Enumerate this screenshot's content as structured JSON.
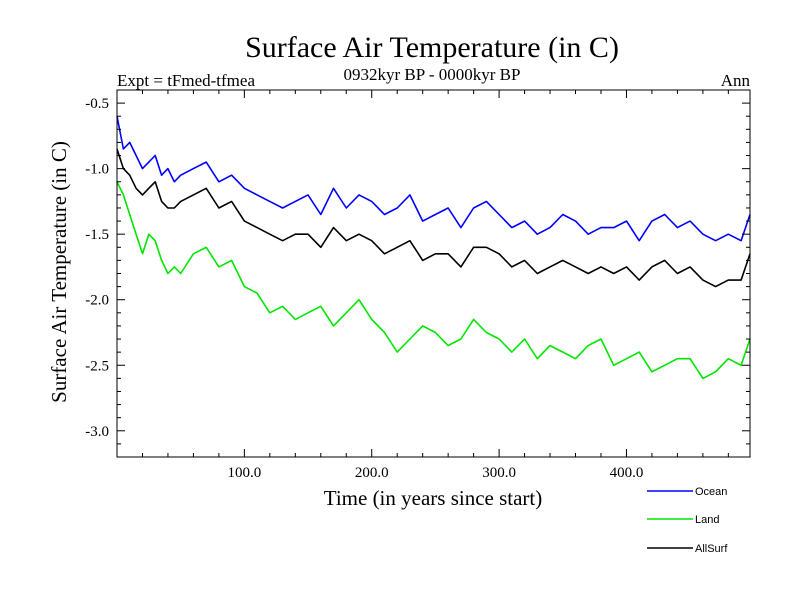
{
  "chart_data": {
    "type": "line",
    "title": "Surface Air Temperature (in C)",
    "subtitle_left": "Expt = tFmed-tfmea",
    "subtitle_center": "0932kyr BP - 0000kyr BP",
    "subtitle_right": "Ann",
    "xlabel": "Time (in years since start)",
    "ylabel": "Surface Air Temperature (in C)",
    "xlim": [
      0,
      497
    ],
    "ylim": [
      -3.2,
      -0.4
    ],
    "x_ticks": [
      100,
      200,
      300,
      400
    ],
    "x_tick_labels": [
      "100.0",
      "200.0",
      "300.0",
      "400.0"
    ],
    "y_ticks": [
      -0.5,
      -1.0,
      -1.5,
      -2.0,
      -2.5,
      -3.0
    ],
    "y_tick_labels": [
      "-0.5",
      "-1.0",
      "-1.5",
      "-2.0",
      "-2.5",
      "-3.0"
    ],
    "legend": "bottom-right",
    "series": [
      {
        "name": "Ocean",
        "color": "#0000ff",
        "x": [
          0,
          5,
          10,
          15,
          20,
          25,
          30,
          35,
          40,
          45,
          50,
          60,
          70,
          80,
          90,
          100,
          110,
          120,
          130,
          140,
          150,
          160,
          170,
          180,
          190,
          200,
          210,
          220,
          230,
          240,
          250,
          260,
          270,
          280,
          290,
          300,
          310,
          320,
          330,
          340,
          350,
          360,
          370,
          380,
          390,
          400,
          410,
          420,
          430,
          440,
          450,
          460,
          470,
          480,
          490,
          497
        ],
        "values": [
          -0.6,
          -0.85,
          -0.8,
          -0.9,
          -1.0,
          -0.95,
          -0.9,
          -1.05,
          -1.0,
          -1.1,
          -1.05,
          -1.0,
          -0.95,
          -1.1,
          -1.05,
          -1.15,
          -1.2,
          -1.25,
          -1.3,
          -1.25,
          -1.2,
          -1.35,
          -1.15,
          -1.3,
          -1.2,
          -1.25,
          -1.35,
          -1.3,
          -1.2,
          -1.4,
          -1.35,
          -1.3,
          -1.45,
          -1.3,
          -1.25,
          -1.35,
          -1.45,
          -1.4,
          -1.5,
          -1.45,
          -1.35,
          -1.4,
          -1.5,
          -1.45,
          -1.45,
          -1.4,
          -1.55,
          -1.4,
          -1.35,
          -1.45,
          -1.4,
          -1.5,
          -1.55,
          -1.5,
          -1.55,
          -1.35
        ]
      },
      {
        "name": "Land",
        "color": "#00e600",
        "x": [
          0,
          5,
          10,
          15,
          20,
          25,
          30,
          35,
          40,
          45,
          50,
          60,
          70,
          80,
          90,
          100,
          110,
          120,
          130,
          140,
          150,
          160,
          170,
          180,
          190,
          200,
          210,
          220,
          230,
          240,
          250,
          260,
          270,
          280,
          290,
          300,
          310,
          320,
          330,
          340,
          350,
          360,
          370,
          380,
          390,
          400,
          410,
          420,
          430,
          440,
          450,
          460,
          470,
          480,
          490,
          497
        ],
        "values": [
          -1.1,
          -1.2,
          -1.35,
          -1.5,
          -1.65,
          -1.5,
          -1.55,
          -1.7,
          -1.8,
          -1.75,
          -1.8,
          -1.65,
          -1.6,
          -1.75,
          -1.7,
          -1.9,
          -1.95,
          -2.1,
          -2.05,
          -2.15,
          -2.1,
          -2.05,
          -2.2,
          -2.1,
          -2.0,
          -2.15,
          -2.25,
          -2.4,
          -2.3,
          -2.2,
          -2.25,
          -2.35,
          -2.3,
          -2.15,
          -2.25,
          -2.3,
          -2.4,
          -2.3,
          -2.45,
          -2.35,
          -2.4,
          -2.45,
          -2.35,
          -2.3,
          -2.5,
          -2.45,
          -2.4,
          -2.55,
          -2.5,
          -2.45,
          -2.45,
          -2.6,
          -2.55,
          -2.45,
          -2.5,
          -2.3
        ]
      },
      {
        "name": "AllSurf",
        "color": "#000000",
        "x": [
          0,
          5,
          10,
          15,
          20,
          25,
          30,
          35,
          40,
          45,
          50,
          60,
          70,
          80,
          90,
          100,
          110,
          120,
          130,
          140,
          150,
          160,
          170,
          180,
          190,
          200,
          210,
          220,
          230,
          240,
          250,
          260,
          270,
          280,
          290,
          300,
          310,
          320,
          330,
          340,
          350,
          360,
          370,
          380,
          390,
          400,
          410,
          420,
          430,
          440,
          450,
          460,
          470,
          480,
          490,
          497
        ],
        "values": [
          -0.85,
          -1.0,
          -1.05,
          -1.15,
          -1.2,
          -1.15,
          -1.1,
          -1.25,
          -1.3,
          -1.3,
          -1.25,
          -1.2,
          -1.15,
          -1.3,
          -1.25,
          -1.4,
          -1.45,
          -1.5,
          -1.55,
          -1.5,
          -1.5,
          -1.6,
          -1.45,
          -1.55,
          -1.5,
          -1.55,
          -1.65,
          -1.6,
          -1.55,
          -1.7,
          -1.65,
          -1.65,
          -1.75,
          -1.6,
          -1.6,
          -1.65,
          -1.75,
          -1.7,
          -1.8,
          -1.75,
          -1.7,
          -1.75,
          -1.8,
          -1.75,
          -1.8,
          -1.75,
          -1.85,
          -1.75,
          -1.7,
          -1.8,
          -1.75,
          -1.85,
          -1.9,
          -1.85,
          -1.85,
          -1.65
        ]
      }
    ]
  }
}
